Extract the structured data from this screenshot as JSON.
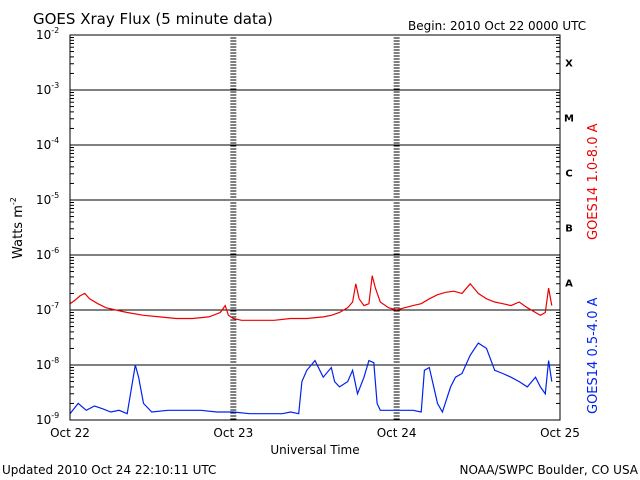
{
  "chart_data": {
    "type": "line",
    "title": "GOES Xray Flux (5 minute data)",
    "begin_text": "Begin:  2010 Oct 22 0000 UTC",
    "xlabel": "Universal Time",
    "ylabel": "Watts m",
    "ylabel_exponent": "-2",
    "y_scale": "log",
    "ylim": [
      1e-09,
      0.01
    ],
    "xlim_days": [
      0,
      3
    ],
    "y_ticks": [
      {
        "base": "10",
        "exp": "-2"
      },
      {
        "base": "10",
        "exp": "-3"
      },
      {
        "base": "10",
        "exp": "-4"
      },
      {
        "base": "10",
        "exp": "-5"
      },
      {
        "base": "10",
        "exp": "-6"
      },
      {
        "base": "10",
        "exp": "-7"
      },
      {
        "base": "10",
        "exp": "-8"
      },
      {
        "base": "10",
        "exp": "-9"
      }
    ],
    "x_ticks": [
      "Oct 22",
      "Oct 23",
      "Oct 24",
      "Oct 25"
    ],
    "flare_classes": [
      "X",
      "M",
      "C",
      "B",
      "A"
    ],
    "grid": "horizontal lines at each decade, dashed vertical lines at day boundaries",
    "series": [
      {
        "name": "GOES14 1.0-8.0 A",
        "color": "#ee0000",
        "points": [
          [
            0.0,
            1.3e-07
          ],
          [
            0.03,
            1.5e-07
          ],
          [
            0.06,
            1.8e-07
          ],
          [
            0.09,
            2e-07
          ],
          [
            0.12,
            1.6e-07
          ],
          [
            0.17,
            1.3e-07
          ],
          [
            0.22,
            1.1e-07
          ],
          [
            0.28,
            1e-07
          ],
          [
            0.35,
            9e-08
          ],
          [
            0.45,
            8e-08
          ],
          [
            0.55,
            7.5e-08
          ],
          [
            0.65,
            7e-08
          ],
          [
            0.75,
            7e-08
          ],
          [
            0.85,
            7.5e-08
          ],
          [
            0.92,
            9e-08
          ],
          [
            0.95,
            1.2e-07
          ],
          [
            0.97,
            8e-08
          ],
          [
            1.0,
            7e-08
          ],
          [
            1.05,
            6.5e-08
          ],
          [
            1.15,
            6.5e-08
          ],
          [
            1.25,
            6.5e-08
          ],
          [
            1.35,
            7e-08
          ],
          [
            1.45,
            7e-08
          ],
          [
            1.55,
            7.5e-08
          ],
          [
            1.6,
            8e-08
          ],
          [
            1.65,
            9e-08
          ],
          [
            1.7,
            1.1e-07
          ],
          [
            1.73,
            1.4e-07
          ],
          [
            1.75,
            3e-07
          ],
          [
            1.77,
            1.6e-07
          ],
          [
            1.8,
            1.2e-07
          ],
          [
            1.83,
            1.3e-07
          ],
          [
            1.85,
            4.2e-07
          ],
          [
            1.87,
            2.5e-07
          ],
          [
            1.9,
            1.4e-07
          ],
          [
            1.95,
            1.1e-07
          ],
          [
            2.0,
            1e-07
          ],
          [
            2.05,
            1.1e-07
          ],
          [
            2.1,
            1.2e-07
          ],
          [
            2.15,
            1.3e-07
          ],
          [
            2.2,
            1.6e-07
          ],
          [
            2.25,
            1.9e-07
          ],
          [
            2.3,
            2.1e-07
          ],
          [
            2.35,
            2.2e-07
          ],
          [
            2.4,
            2e-07
          ],
          [
            2.45,
            3e-07
          ],
          [
            2.5,
            2e-07
          ],
          [
            2.55,
            1.6e-07
          ],
          [
            2.6,
            1.4e-07
          ],
          [
            2.65,
            1.3e-07
          ],
          [
            2.7,
            1.2e-07
          ],
          [
            2.75,
            1.4e-07
          ],
          [
            2.8,
            1.1e-07
          ],
          [
            2.85,
            9e-08
          ],
          [
            2.88,
            8e-08
          ],
          [
            2.91,
            9e-08
          ],
          [
            2.93,
            2.5e-07
          ],
          [
            2.95,
            1.2e-07
          ]
        ]
      },
      {
        "name": "GOES14 0.5-4.0 A",
        "color": "#0022ee",
        "points": [
          [
            0.0,
            1.3e-09
          ],
          [
            0.05,
            2e-09
          ],
          [
            0.1,
            1.5e-09
          ],
          [
            0.15,
            1.8e-09
          ],
          [
            0.2,
            1.6e-09
          ],
          [
            0.25,
            1.4e-09
          ],
          [
            0.3,
            1.5e-09
          ],
          [
            0.35,
            1.3e-09
          ],
          [
            0.4,
            1e-08
          ],
          [
            0.42,
            6e-09
          ],
          [
            0.45,
            2e-09
          ],
          [
            0.5,
            1.4e-09
          ],
          [
            0.6,
            1.5e-09
          ],
          [
            0.7,
            1.5e-09
          ],
          [
            0.8,
            1.5e-09
          ],
          [
            0.9,
            1.4e-09
          ],
          [
            1.0,
            1.4e-09
          ],
          [
            1.1,
            1.3e-09
          ],
          [
            1.2,
            1.3e-09
          ],
          [
            1.3,
            1.3e-09
          ],
          [
            1.35,
            1.4e-09
          ],
          [
            1.4,
            1.3e-09
          ],
          [
            1.42,
            5e-09
          ],
          [
            1.45,
            8e-09
          ],
          [
            1.5,
            1.2e-08
          ],
          [
            1.55,
            6e-09
          ],
          [
            1.6,
            9e-09
          ],
          [
            1.62,
            5e-09
          ],
          [
            1.65,
            4e-09
          ],
          [
            1.7,
            5e-09
          ],
          [
            1.73,
            8e-09
          ],
          [
            1.76,
            3e-09
          ],
          [
            1.8,
            6e-09
          ],
          [
            1.83,
            1.2e-08
          ],
          [
            1.86,
            1.1e-08
          ],
          [
            1.88,
            2e-09
          ],
          [
            1.9,
            1.5e-09
          ],
          [
            2.0,
            1.5e-09
          ],
          [
            2.1,
            1.5e-09
          ],
          [
            2.15,
            1.4e-09
          ],
          [
            2.17,
            8e-09
          ],
          [
            2.2,
            9e-09
          ],
          [
            2.25,
            2e-09
          ],
          [
            2.28,
            1.4e-09
          ],
          [
            2.33,
            4e-09
          ],
          [
            2.36,
            6e-09
          ],
          [
            2.4,
            7e-09
          ],
          [
            2.45,
            1.5e-08
          ],
          [
            2.5,
            2.5e-08
          ],
          [
            2.55,
            2e-08
          ],
          [
            2.6,
            8e-09
          ],
          [
            2.65,
            7e-09
          ],
          [
            2.7,
            6e-09
          ],
          [
            2.75,
            5e-09
          ],
          [
            2.8,
            4e-09
          ],
          [
            2.85,
            6e-09
          ],
          [
            2.88,
            4e-09
          ],
          [
            2.91,
            3e-09
          ],
          [
            2.93,
            1.2e-08
          ],
          [
            2.95,
            5e-09
          ]
        ]
      }
    ]
  },
  "footer": {
    "updated": "Updated 2010 Oct 24 22:10:11 UTC",
    "source": "NOAA/SWPC Boulder, CO USA"
  }
}
